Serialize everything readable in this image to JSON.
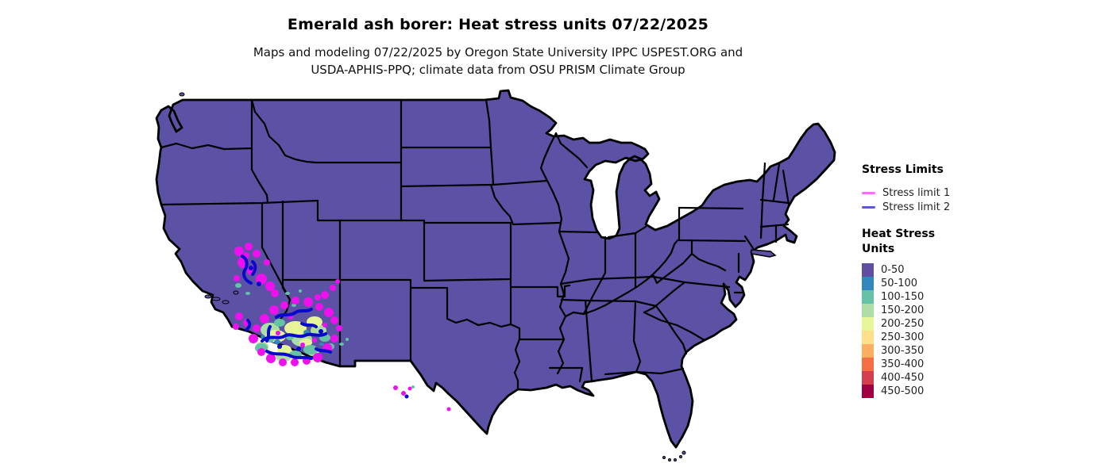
{
  "title": "Emerald ash borer: Heat stress units 07/22/2025",
  "subtitle_line1": "Maps and modeling 07/22/2025 by Oregon State University IPPC USPEST.ORG and",
  "subtitle_line2": "USDA-APHIS-PPQ; climate data from OSU PRISM Climate Group",
  "map": {
    "region": "Continental United States state map",
    "fill_color": "#5c52a5",
    "border_color": "#000000",
    "background_color": "#ffffff",
    "stress_limit1_map_color": "#ee11ee",
    "stress_limit2_map_color": "#0909cb",
    "hotspot_regions_shown": [
      "southern Arizona",
      "southeastern California",
      "Rio Grande border of west Texas"
    ]
  },
  "legend": {
    "stress_limits": {
      "title": "Stress Limits",
      "items": [
        {
          "label": "Stress limit 1",
          "color": "#f272f2"
        },
        {
          "label": "Stress limit 2",
          "color": "#5e57d2"
        }
      ]
    },
    "heat_stress_units": {
      "title": "Heat Stress Units",
      "title_lines": [
        "Heat Stress",
        "Units"
      ],
      "classes": [
        {
          "label": "0-50",
          "color": "#5e4fa2"
        },
        {
          "label": "50-100",
          "color": "#3288bd"
        },
        {
          "label": "100-150",
          "color": "#66c2a5"
        },
        {
          "label": "150-200",
          "color": "#abdda4"
        },
        {
          "label": "200-250",
          "color": "#e6f598"
        },
        {
          "label": "250-300",
          "color": "#fee08b"
        },
        {
          "label": "300-350",
          "color": "#fdae61"
        },
        {
          "label": "350-400",
          "color": "#f46d43"
        },
        {
          "label": "400-450",
          "color": "#d53e4f"
        },
        {
          "label": "450-500",
          "color": "#9e0142"
        }
      ]
    }
  }
}
